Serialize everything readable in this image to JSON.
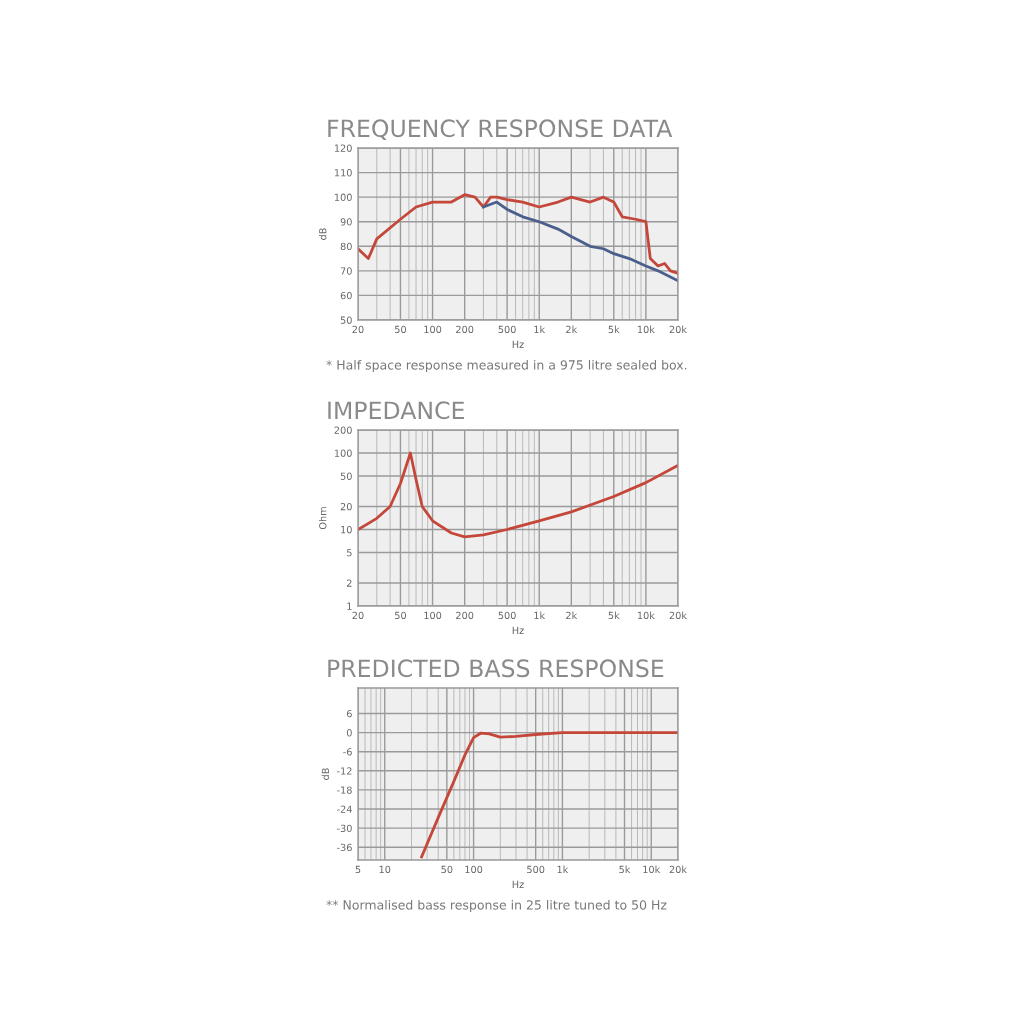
{
  "chart_data": [
    {
      "type": "line",
      "title": "FREQUENCY RESPONSE DATA",
      "xlabel": "Hz",
      "ylabel": "dB",
      "log": "x",
      "grid": true,
      "xlim": [
        20,
        20000
      ],
      "xticks": [
        20,
        50,
        100,
        200,
        500,
        {
          "value": 1000,
          "label": "1k"
        },
        {
          "value": 2000,
          "label": "2k"
        },
        {
          "value": 5000,
          "label": "5k"
        },
        {
          "value": 10000,
          "label": "10k"
        },
        {
          "value": 20000,
          "label": "20k"
        }
      ],
      "ylim": [
        50,
        120
      ],
      "yticks": [
        50,
        60,
        70,
        80,
        90,
        100,
        110,
        120
      ],
      "series": [
        {
          "color": "#c4473a",
          "x": [
            20,
            25,
            30,
            50,
            70,
            100,
            150,
            200,
            250,
            300,
            350,
            400,
            500,
            700,
            1000,
            1500,
            2000,
            3000,
            4000,
            5000,
            6000,
            8000,
            10000,
            11000,
            13000,
            15000,
            17000,
            20000
          ],
          "values": [
            79,
            75,
            83,
            91,
            96,
            98,
            98,
            101,
            100,
            96,
            100,
            100,
            99,
            98,
            96,
            98,
            100,
            98,
            100,
            98,
            92,
            91,
            90,
            75,
            72,
            73,
            70,
            69
          ]
        },
        {
          "color": "#4a5f8c",
          "x": [
            300,
            400,
            500,
            700,
            1000,
            1500,
            2000,
            3000,
            4000,
            5000,
            7000,
            10000,
            13000,
            20000
          ],
          "values": [
            96,
            98,
            95,
            92,
            90,
            87,
            84,
            80,
            79,
            77,
            75,
            72,
            70,
            66
          ]
        }
      ],
      "annotations": [
        "* Half space response measured in a 975 litre sealed box."
      ]
    },
    {
      "type": "line",
      "title": "IMPEDANCE",
      "xlabel": "Hz",
      "ylabel": "Ohm",
      "log": "xy",
      "grid": true,
      "xlim": [
        20,
        20000
      ],
      "xticks": [
        20,
        50,
        100,
        200,
        500,
        {
          "value": 1000,
          "label": "1k"
        },
        {
          "value": 2000,
          "label": "2k"
        },
        {
          "value": 5000,
          "label": "5k"
        },
        {
          "value": 10000,
          "label": "10k"
        },
        {
          "value": 20000,
          "label": "20k"
        }
      ],
      "ylim": [
        1,
        200
      ],
      "yticks": [
        1,
        2,
        5,
        10,
        20,
        50,
        100,
        200
      ],
      "series": [
        {
          "color": "#c4473a",
          "x": [
            20,
            30,
            40,
            50,
            62,
            70,
            80,
            100,
            150,
            200,
            300,
            500,
            1000,
            2000,
            5000,
            10000,
            20000
          ],
          "values": [
            10,
            14,
            20,
            40,
            100,
            45,
            20,
            13,
            9,
            8,
            8.5,
            10,
            13,
            17,
            27,
            41,
            69
          ]
        }
      ]
    },
    {
      "type": "line",
      "title": "PREDICTED BASS RESPONSE",
      "xlabel": "Hz",
      "ylabel": "dB",
      "log": "x",
      "grid": true,
      "xlim": [
        5,
        20000
      ],
      "xticks": [
        5,
        10,
        50,
        100,
        500,
        {
          "value": 1000,
          "label": "1k"
        },
        {
          "value": 5000,
          "label": "5k"
        },
        {
          "value": 10000,
          "label": "10k"
        },
        {
          "value": 20000,
          "label": "20k"
        }
      ],
      "ylim": [
        -40,
        14
      ],
      "yticks": [
        -36,
        -30,
        -24,
        -18,
        -12,
        -6,
        0,
        6
      ],
      "series": [
        {
          "color": "#c4473a",
          "x": [
            26,
            40,
            60,
            80,
            100,
            120,
            150,
            200,
            300,
            500,
            1000,
            20000
          ],
          "values": [
            -39,
            -26.7,
            -15.3,
            -7,
            -1.6,
            -0.2,
            -0.4,
            -1.4,
            -1.2,
            -0.6,
            0,
            0
          ]
        }
      ],
      "annotations": [
        "** Normalised bass response in 25 litre tuned to 50 Hz"
      ]
    }
  ]
}
